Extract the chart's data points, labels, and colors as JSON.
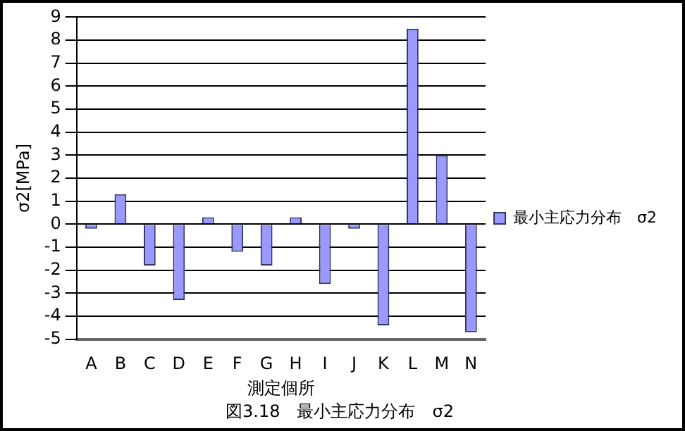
{
  "chart_data": {
    "type": "bar",
    "title": "図3.18　最小主応力分布　σ2",
    "xlabel": "測定個所",
    "ylabel": "σ2[MPa]",
    "categories": [
      "A",
      "B",
      "C",
      "D",
      "E",
      "F",
      "G",
      "H",
      "I",
      "J",
      "K",
      "L",
      "M",
      "N"
    ],
    "series": [
      {
        "name": "最小主応力分布　σ2",
        "color": "#9999ff",
        "values": [
          -0.2,
          1.3,
          -1.8,
          -3.3,
          0.3,
          -1.2,
          -1.8,
          0.3,
          -2.6,
          -0.2,
          -4.4,
          8.5,
          3.0,
          -4.7
        ]
      }
    ],
    "ylim": [
      -5,
      9
    ],
    "yticks": [
      -5,
      -4,
      -3,
      -2,
      -1,
      0,
      1,
      2,
      3,
      4,
      5,
      6,
      7,
      8,
      9
    ],
    "grid": "y",
    "legend": "right"
  }
}
